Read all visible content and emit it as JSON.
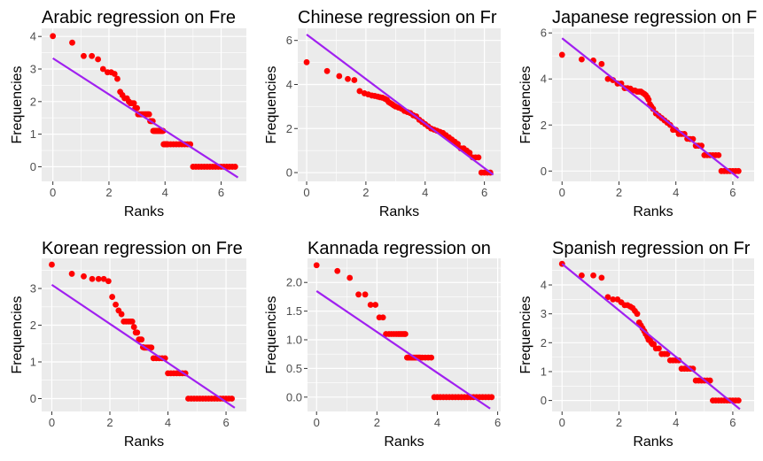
{
  "chart_data": [
    {
      "type": "scatter",
      "title": "Arabic regression on Fre",
      "xlabel": "Ranks",
      "ylabel": "Frequencies",
      "xlim": [
        -0.4,
        6.9
      ],
      "ylim": [
        -0.45,
        4.25
      ],
      "x_ticks": [
        0,
        2,
        4,
        6
      ],
      "y_ticks": [
        0,
        1,
        2,
        3,
        4
      ],
      "points_x": [
        0,
        0.69,
        1.1,
        1.39,
        1.61,
        1.79,
        1.95,
        2.08,
        2.2,
        2.3,
        2.4,
        2.48,
        2.56,
        2.64,
        2.71,
        2.77,
        2.83,
        2.89,
        2.94,
        3.0,
        3.04,
        3.09,
        3.14,
        3.18,
        3.22,
        3.26,
        3.3,
        3.33,
        3.37,
        3.4,
        3.43,
        3.47,
        3.5,
        3.53,
        3.56,
        3.58,
        3.61,
        3.64,
        3.66,
        3.69,
        3.71,
        3.74,
        3.76,
        3.78,
        3.81,
        3.83,
        3.85,
        3.87,
        3.89,
        3.91,
        3.93,
        3.95,
        3.97,
        3.99,
        4.0,
        4.02,
        4.04,
        4.06,
        4.08,
        4.1,
        4.2,
        4.3,
        4.4,
        4.5,
        4.6,
        4.7,
        4.8,
        4.9,
        5.0,
        5.1,
        5.2,
        5.3,
        5.4,
        5.5,
        5.6,
        5.7,
        5.8,
        5.9,
        6.0,
        6.1,
        6.2,
        6.3,
        6.4,
        6.5
      ],
      "points_y": [
        4.01,
        3.81,
        3.4,
        3.4,
        3.3,
        3.0,
        2.9,
        2.9,
        2.85,
        2.7,
        2.3,
        2.2,
        2.1,
        2.1,
        2.0,
        1.95,
        1.95,
        1.95,
        1.8,
        1.8,
        1.61,
        1.61,
        1.61,
        1.61,
        1.61,
        1.61,
        1.61,
        1.61,
        1.61,
        1.61,
        1.61,
        1.4,
        1.4,
        1.4,
        1.4,
        1.1,
        1.1,
        1.1,
        1.1,
        1.1,
        1.1,
        1.1,
        1.1,
        1.1,
        1.1,
        1.1,
        1.1,
        1.1,
        1.1,
        1.1,
        1.1,
        0.69,
        0.69,
        0.69,
        0.69,
        0.69,
        0.69,
        0.69,
        0.69,
        0.69,
        0.69,
        0.69,
        0.69,
        0.69,
        0.69,
        0.69,
        0.69,
        0.69,
        0,
        0,
        0,
        0,
        0,
        0,
        0,
        0,
        0,
        0,
        0,
        0,
        0,
        0,
        0,
        0
      ],
      "regression_line": [
        [
          0,
          3.33
        ],
        [
          6.6,
          -0.33
        ]
      ],
      "colors": {
        "points": "#ff0000",
        "line": "#a020f0",
        "panel": "#ebebeb",
        "grid": "#ffffff"
      }
    },
    {
      "type": "scatter",
      "title": "Chinese regression on Fr",
      "xlabel": "Ranks",
      "ylabel": "Frequencies",
      "xlim": [
        -0.3,
        6.55
      ],
      "ylim": [
        -0.4,
        6.55
      ],
      "x_ticks": [
        0,
        2,
        4,
        6
      ],
      "y_ticks": [
        0,
        2,
        4,
        6
      ],
      "points_x": [
        0,
        0.69,
        1.1,
        1.39,
        1.61,
        1.79,
        1.95,
        2.08,
        2.2,
        2.3,
        2.4,
        2.48,
        2.56,
        2.64,
        2.71,
        2.77,
        2.83,
        2.89,
        2.94,
        3.0,
        3.1,
        3.2,
        3.3,
        3.4,
        3.5,
        3.6,
        3.7,
        3.8,
        3.9,
        4.0,
        4.1,
        4.2,
        4.3,
        4.4,
        4.5,
        4.6,
        4.7,
        4.8,
        4.9,
        5.0,
        5.1,
        5.2,
        5.3,
        5.4,
        5.5,
        5.6,
        5.7,
        5.8,
        5.9,
        6.0,
        6.1,
        6.2
      ],
      "points_y": [
        5.01,
        4.61,
        4.38,
        4.25,
        4.2,
        3.7,
        3.6,
        3.55,
        3.5,
        3.48,
        3.45,
        3.42,
        3.4,
        3.35,
        3.3,
        3.2,
        3.15,
        3.1,
        3.05,
        3.0,
        2.95,
        2.9,
        2.8,
        2.75,
        2.7,
        2.6,
        2.55,
        2.4,
        2.3,
        2.2,
        2.1,
        2.0,
        1.95,
        1.9,
        1.85,
        1.8,
        1.7,
        1.6,
        1.5,
        1.4,
        1.3,
        1.1,
        1.1,
        1.0,
        0.9,
        0.69,
        0.69,
        0.69,
        0,
        0,
        0,
        0
      ],
      "regression_line": [
        [
          0,
          6.27
        ],
        [
          6.3,
          -0.1
        ]
      ],
      "colors": {
        "points": "#ff0000",
        "line": "#a020f0",
        "panel": "#ebebeb",
        "grid": "#ffffff"
      }
    },
    {
      "type": "scatter",
      "title": "Japanese regression on F",
      "xlabel": "Ranks",
      "ylabel": "Frequencies",
      "xlim": [
        -0.35,
        6.75
      ],
      "ylim": [
        -0.45,
        6.2
      ],
      "x_ticks": [
        0,
        2,
        4,
        6
      ],
      "y_ticks": [
        0,
        2,
        4,
        6
      ],
      "points_x": [
        0,
        0.69,
        1.1,
        1.39,
        1.61,
        1.79,
        1.95,
        2.08,
        2.2,
        2.3,
        2.4,
        2.48,
        2.56,
        2.64,
        2.71,
        2.77,
        2.83,
        2.89,
        2.94,
        3.0,
        3.04,
        3.09,
        3.14,
        3.2,
        3.3,
        3.4,
        3.5,
        3.6,
        3.7,
        3.8,
        3.9,
        4.0,
        4.1,
        4.2,
        4.3,
        4.4,
        4.5,
        4.6,
        4.7,
        4.8,
        4.9,
        5.0,
        5.1,
        5.2,
        5.3,
        5.4,
        5.5,
        5.6,
        5.7,
        5.8,
        5.9,
        6.0,
        6.1,
        6.2
      ],
      "points_y": [
        5.05,
        4.85,
        4.8,
        4.65,
        4.0,
        3.95,
        3.8,
        3.8,
        3.6,
        3.6,
        3.58,
        3.5,
        3.5,
        3.45,
        3.45,
        3.45,
        3.4,
        3.35,
        3.3,
        3.2,
        3.1,
        2.9,
        2.8,
        2.7,
        2.5,
        2.4,
        2.3,
        2.2,
        2.1,
        2.0,
        1.79,
        1.79,
        1.61,
        1.61,
        1.61,
        1.4,
        1.39,
        1.39,
        1.1,
        1.1,
        1.1,
        0.69,
        0.69,
        0.69,
        0.69,
        0.69,
        0.69,
        0,
        0,
        0,
        0,
        0,
        0,
        0
      ],
      "regression_line": [
        [
          0,
          5.77
        ],
        [
          6.2,
          -0.3
        ]
      ],
      "colors": {
        "points": "#ff0000",
        "line": "#a020f0",
        "panel": "#ebebeb",
        "grid": "#ffffff"
      }
    },
    {
      "type": "scatter",
      "title": "Korean regression on Fre",
      "xlabel": "Ranks",
      "ylabel": "Frequencies",
      "xlim": [
        -0.35,
        6.7
      ],
      "ylim": [
        -0.35,
        3.82
      ],
      "x_ticks": [
        0,
        2,
        4,
        6
      ],
      "y_ticks": [
        0,
        1,
        2,
        3
      ],
      "points_x": [
        0,
        0.69,
        1.1,
        1.39,
        1.61,
        1.79,
        1.95,
        2.08,
        2.2,
        2.3,
        2.4,
        2.48,
        2.56,
        2.64,
        2.71,
        2.77,
        2.83,
        2.89,
        2.94,
        3.0,
        3.04,
        3.09,
        3.14,
        3.18,
        3.22,
        3.26,
        3.3,
        3.33,
        3.37,
        3.4,
        3.43,
        3.5,
        3.6,
        3.7,
        3.8,
        3.9,
        4.0,
        4.1,
        4.2,
        4.3,
        4.4,
        4.5,
        4.6,
        4.7,
        4.8,
        4.9,
        5.0,
        5.1,
        5.2,
        5.3,
        5.4,
        5.5,
        5.6,
        5.7,
        5.8,
        5.9,
        6.0,
        6.1,
        6.2
      ],
      "points_y": [
        3.65,
        3.4,
        3.33,
        3.26,
        3.26,
        3.26,
        3.2,
        2.77,
        2.56,
        2.4,
        2.3,
        2.1,
        2.1,
        2.1,
        2.1,
        2.1,
        1.95,
        1.8,
        1.8,
        1.61,
        1.61,
        1.61,
        1.4,
        1.39,
        1.39,
        1.39,
        1.39,
        1.39,
        1.39,
        1.39,
        1.39,
        1.1,
        1.1,
        1.1,
        1.1,
        1.1,
        0.69,
        0.69,
        0.69,
        0.69,
        0.69,
        0.69,
        0.69,
        0,
        0,
        0,
        0,
        0,
        0,
        0,
        0,
        0,
        0,
        0,
        0,
        0,
        0,
        0,
        0
      ],
      "regression_line": [
        [
          0,
          3.1
        ],
        [
          6.3,
          -0.25
        ]
      ],
      "colors": {
        "points": "#ff0000",
        "line": "#a020f0",
        "panel": "#ebebeb",
        "grid": "#ffffff"
      }
    },
    {
      "type": "scatter",
      "title": "Kannada regression on",
      "xlabel": "Ranks",
      "ylabel": "Frequencies",
      "xlim": [
        -0.3,
        6.1
      ],
      "ylim": [
        -0.25,
        2.42
      ],
      "x_ticks": [
        0,
        2,
        4,
        6
      ],
      "y_ticks": [
        0.0,
        0.5,
        1.0,
        1.5,
        2.0
      ],
      "y_tick_labels": [
        "0.0",
        "0.5",
        "1.0",
        "1.5",
        "2.0"
      ],
      "points_x": [
        0,
        0.69,
        1.1,
        1.39,
        1.61,
        1.79,
        1.95,
        2.08,
        2.2,
        2.3,
        2.4,
        2.48,
        2.56,
        2.64,
        2.71,
        2.77,
        2.83,
        2.89,
        2.94,
        3.0,
        3.04,
        3.09,
        3.14,
        3.18,
        3.22,
        3.26,
        3.3,
        3.33,
        3.37,
        3.4,
        3.43,
        3.5,
        3.6,
        3.7,
        3.8,
        3.9,
        4.0,
        4.1,
        4.2,
        4.3,
        4.4,
        4.5,
        4.6,
        4.7,
        4.8,
        4.9,
        5.0,
        5.1,
        5.2,
        5.3,
        5.4,
        5.5,
        5.6,
        5.7,
        5.8
      ],
      "points_y": [
        2.3,
        2.2,
        2.08,
        1.79,
        1.79,
        1.61,
        1.61,
        1.39,
        1.39,
        1.1,
        1.1,
        1.1,
        1.1,
        1.1,
        1.1,
        1.1,
        1.1,
        1.1,
        1.1,
        0.69,
        0.69,
        0.69,
        0.69,
        0.69,
        0.69,
        0.69,
        0.69,
        0.69,
        0.69,
        0.69,
        0.69,
        0.69,
        0.69,
        0.69,
        0.69,
        0,
        0,
        0,
        0,
        0,
        0,
        0,
        0,
        0,
        0,
        0,
        0,
        0,
        0,
        0,
        0,
        0,
        0,
        0,
        0
      ],
      "regression_line": [
        [
          0,
          1.85
        ],
        [
          5.75,
          -0.2
        ]
      ],
      "colors": {
        "points": "#ff0000",
        "line": "#a020f0",
        "panel": "#ebebeb",
        "grid": "#ffffff"
      }
    },
    {
      "type": "scatter",
      "title": "Spanish regression on Fr",
      "xlabel": "Ranks",
      "ylabel": "Frequencies",
      "xlim": [
        -0.35,
        6.75
      ],
      "ylim": [
        -0.38,
        4.92
      ],
      "x_ticks": [
        0,
        2,
        4,
        6
      ],
      "y_ticks": [
        0,
        1,
        2,
        3,
        4
      ],
      "points_x": [
        0,
        0.69,
        1.1,
        1.39,
        1.61,
        1.79,
        1.95,
        2.08,
        2.2,
        2.3,
        2.4,
        2.48,
        2.56,
        2.64,
        2.71,
        2.77,
        2.83,
        2.89,
        2.94,
        3.0,
        3.04,
        3.09,
        3.14,
        3.18,
        3.22,
        3.3,
        3.4,
        3.5,
        3.6,
        3.7,
        3.8,
        3.9,
        4.0,
        4.1,
        4.2,
        4.3,
        4.4,
        4.5,
        4.6,
        4.7,
        4.8,
        4.9,
        5.0,
        5.1,
        5.2,
        5.3,
        5.4,
        5.5,
        5.6,
        5.7,
        5.8,
        5.9,
        6.0,
        6.1,
        6.2
      ],
      "points_y": [
        4.73,
        4.33,
        4.33,
        4.25,
        3.58,
        3.5,
        3.5,
        3.4,
        3.3,
        3.3,
        3.25,
        3.2,
        3.1,
        3.0,
        2.7,
        2.6,
        2.5,
        2.4,
        2.3,
        2.2,
        2.1,
        2.1,
        2.0,
        1.95,
        1.95,
        1.8,
        1.8,
        1.61,
        1.61,
        1.61,
        1.39,
        1.39,
        1.39,
        1.39,
        1.1,
        1.1,
        1.1,
        1.1,
        1.1,
        0.69,
        0.69,
        0.69,
        0.69,
        0.69,
        0.69,
        0,
        0,
        0,
        0,
        0,
        0,
        0,
        0,
        0,
        0
      ],
      "regression_line": [
        [
          0,
          4.73
        ],
        [
          6.25,
          -0.3
        ]
      ],
      "colors": {
        "points": "#ff0000",
        "line": "#a020f0",
        "panel": "#ebebeb",
        "grid": "#ffffff"
      }
    }
  ]
}
